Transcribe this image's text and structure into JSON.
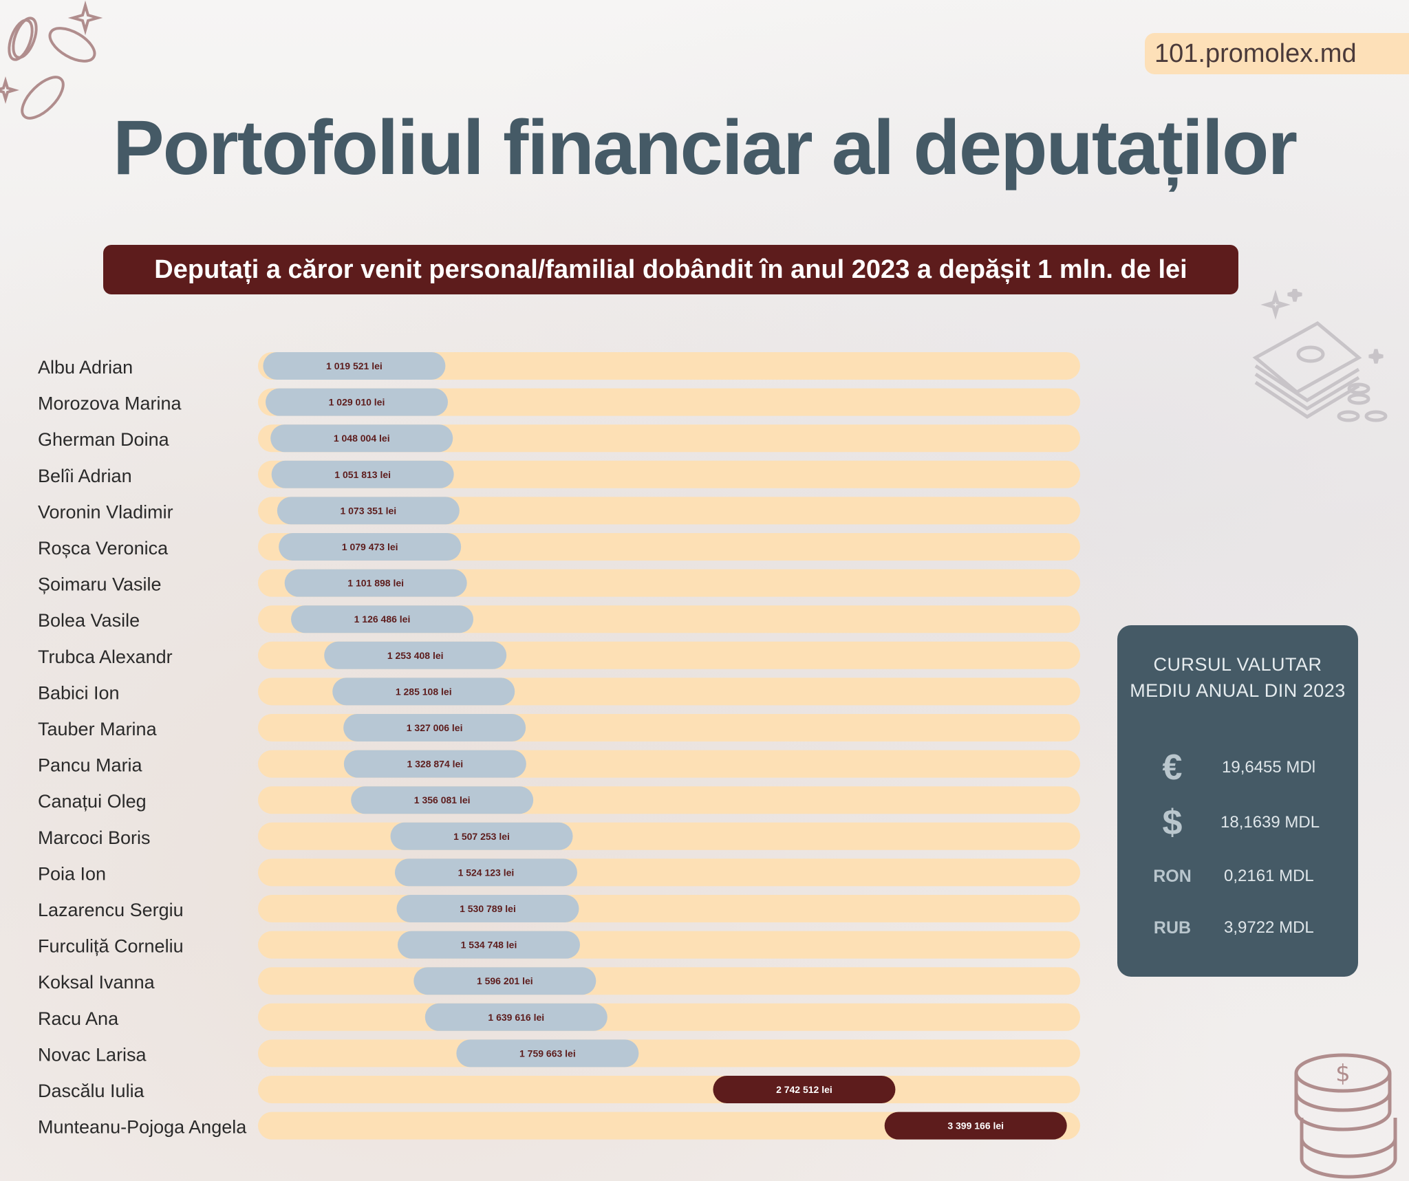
{
  "site": "101.promolex.md",
  "title": "Portofoliul financiar al deputaților",
  "subtitle": "Deputați a căror venit personal/familial dobândit în anul 2023 a depășit 1 mln.  de lei",
  "rates": {
    "title_line1": "CURSUL VALUTAR",
    "title_line2": "MEDIU ANUAL DIN 2023",
    "items": [
      {
        "symbol": "€",
        "value": "19,6455 MDl"
      },
      {
        "symbol": "$",
        "value": "18,1639 MDL"
      },
      {
        "symbol": "RON",
        "value": "0,2161 MDL"
      },
      {
        "symbol": "RUB",
        "value": "3,9722 MDL"
      }
    ]
  },
  "colors": {
    "track": "#fde0b5",
    "bar": "#b7c7d4",
    "bar_highlight": "#5d1c1c",
    "label_dark": "#5d1c1c",
    "label_light": "#ffffff",
    "title": "#455a66"
  },
  "chart_data": {
    "type": "bar",
    "orientation": "horizontal",
    "title": "",
    "categories": [
      "Albu Adrian",
      "Morozova Marina",
      "Gherman Doina",
      "Belîi Adrian",
      "Voronin Vladimir",
      "Roșca Veronica",
      "Șoimaru Vasile",
      "Bolea Vasile",
      "Trubca Alexandr",
      "Babici Ion",
      "Tauber Marina",
      "Pancu Maria",
      "Canațui Oleg",
      "Marcoci Boris",
      "Poia Ion",
      "Lazarencu Sergiu",
      "Furculiță Corneliu",
      "Koksal Ivanna",
      "Racu Ana",
      "Novac Larisa",
      "Dascălu Iulia",
      "Munteanu-Pojoga Angela"
    ],
    "values": [
      1019521,
      1029010,
      1048004,
      1051813,
      1073351,
      1079473,
      1101898,
      1126486,
      1253408,
      1285108,
      1327006,
      1328874,
      1356081,
      1507253,
      1524123,
      1530789,
      1534748,
      1596201,
      1639616,
      1759663,
      2742512,
      3399166
    ],
    "value_labels": [
      "1 019 521 lei",
      "1 029 010 lei",
      "1 048 004 lei",
      "1 051 813 lei",
      "1 073 351 lei",
      "1 079 473 lei",
      "1 101 898 lei",
      "1 126 486 lei",
      "1 253 408 lei",
      "1 285 108 lei",
      "1 327 006 lei",
      "1 328 874 lei",
      "1 356 081 lei",
      "1 507 253 lei",
      "1 524 123 lei",
      "1 530 789 lei",
      "1 534 748 lei",
      "1 596 201 lei",
      "1 639 616 lei",
      "1 759 663 lei",
      "2 742 512 lei",
      "3 399 166 lei"
    ],
    "highlighted": [
      false,
      false,
      false,
      false,
      false,
      false,
      false,
      false,
      false,
      false,
      false,
      false,
      false,
      false,
      false,
      false,
      false,
      false,
      false,
      false,
      true,
      true
    ],
    "unit": "lei",
    "grid": false,
    "legend": "none"
  }
}
